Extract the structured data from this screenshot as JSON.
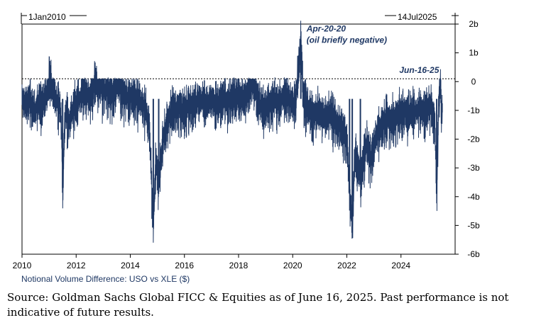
{
  "chart_data": {
    "type": "line",
    "title": "",
    "xlabel": "Notional Volume Difference: USO vs XLE ($)",
    "ylabel": "",
    "xlim": [
      2010,
      2026
    ],
    "ylim": [
      -6,
      2
    ],
    "x_ticks": [
      "2010",
      "2012",
      "2014",
      "2016",
      "2018",
      "2020",
      "2022",
      "2024"
    ],
    "y_ticks": [
      "2b",
      "1b",
      "0",
      "-1b",
      "-2b",
      "-3b",
      "-4b",
      "-5b",
      "-6b"
    ],
    "y_tick_values": [
      2,
      1,
      0,
      -1,
      -2,
      -3,
      -4,
      -5,
      -6
    ],
    "start_label": "1Jan2010",
    "end_label": "14Jul2025",
    "reference_line": {
      "y": 0.1,
      "style": "dotted"
    },
    "annotations": [
      {
        "label": "Apr-20-20",
        "x": 2020.3,
        "y": 1.45
      },
      {
        "label": "(oil briefly negative)",
        "x": 2020.3,
        "y": 1.45
      },
      {
        "label": "Jun-16-25",
        "x": 2025.46,
        "y": 0.05
      }
    ],
    "series": [
      {
        "color": "#1f3864",
        "points": [
          [
            2010.0,
            -0.55
          ],
          [
            2010.15,
            -0.8
          ],
          [
            2010.3,
            -0.5
          ],
          [
            2010.45,
            -1.1
          ],
          [
            2010.6,
            -0.6
          ],
          [
            2010.75,
            -0.9
          ],
          [
            2010.9,
            -0.4
          ],
          [
            2011.05,
            0.2
          ],
          [
            2011.15,
            -0.3
          ],
          [
            2011.3,
            -0.7
          ],
          [
            2011.45,
            -1.2
          ],
          [
            2011.5,
            -3.7
          ],
          [
            2011.6,
            -1.0
          ],
          [
            2011.75,
            -1.4
          ],
          [
            2011.9,
            -0.9
          ],
          [
            2012.1,
            -0.6
          ],
          [
            2012.3,
            -0.3
          ],
          [
            2012.5,
            -0.5
          ],
          [
            2012.7,
            0.1
          ],
          [
            2012.9,
            -0.2
          ],
          [
            2013.1,
            -0.3
          ],
          [
            2013.3,
            -0.4
          ],
          [
            2013.5,
            0.0
          ],
          [
            2013.7,
            -0.4
          ],
          [
            2013.9,
            -0.6
          ],
          [
            2014.1,
            -0.5
          ],
          [
            2014.3,
            -0.6
          ],
          [
            2014.5,
            -0.8
          ],
          [
            2014.7,
            -1.5
          ],
          [
            2014.85,
            -5.0
          ],
          [
            2014.95,
            -2.6
          ],
          [
            2015.05,
            -3.6
          ],
          [
            2015.2,
            -2.0
          ],
          [
            2015.4,
            -1.2
          ],
          [
            2015.6,
            -1.0
          ],
          [
            2015.8,
            -0.9
          ],
          [
            2016.0,
            -1.0
          ],
          [
            2016.2,
            -0.8
          ],
          [
            2016.4,
            -0.7
          ],
          [
            2016.6,
            -0.6
          ],
          [
            2016.8,
            -0.7
          ],
          [
            2017.0,
            -0.6
          ],
          [
            2017.2,
            -0.8
          ],
          [
            2017.4,
            -0.6
          ],
          [
            2017.6,
            -0.7
          ],
          [
            2017.8,
            -0.6
          ],
          [
            2018.0,
            -0.5
          ],
          [
            2018.2,
            -0.6
          ],
          [
            2018.5,
            0.0
          ],
          [
            2018.7,
            -0.6
          ],
          [
            2018.9,
            -1.0
          ],
          [
            2019.1,
            -0.8
          ],
          [
            2019.3,
            -0.6
          ],
          [
            2019.5,
            -0.7
          ],
          [
            2019.7,
            -0.5
          ],
          [
            2019.9,
            -0.6
          ],
          [
            2020.1,
            -0.8
          ],
          [
            2020.3,
            1.45
          ],
          [
            2020.4,
            -0.6
          ],
          [
            2020.6,
            -0.9
          ],
          [
            2020.8,
            -1.2
          ],
          [
            2021.0,
            -1.0
          ],
          [
            2021.2,
            -1.3
          ],
          [
            2021.4,
            -1.1
          ],
          [
            2021.6,
            -1.4
          ],
          [
            2021.8,
            -1.6
          ],
          [
            2022.0,
            -2.0
          ],
          [
            2022.1,
            -3.8
          ],
          [
            2022.2,
            -5.0
          ],
          [
            2022.3,
            -2.5
          ],
          [
            2022.5,
            -3.2
          ],
          [
            2022.7,
            -2.2
          ],
          [
            2022.9,
            -2.6
          ],
          [
            2023.1,
            -1.8
          ],
          [
            2023.3,
            -1.5
          ],
          [
            2023.5,
            -1.2
          ],
          [
            2023.7,
            -1.3
          ],
          [
            2023.9,
            -1.1
          ],
          [
            2024.1,
            -1.0
          ],
          [
            2024.3,
            -1.1
          ],
          [
            2024.5,
            -1.0
          ],
          [
            2024.7,
            -0.9
          ],
          [
            2024.9,
            -1.0
          ],
          [
            2025.1,
            -0.8
          ],
          [
            2025.25,
            -1.5
          ],
          [
            2025.32,
            -3.9
          ],
          [
            2025.4,
            -0.6
          ],
          [
            2025.46,
            0.05
          ],
          [
            2025.5,
            -1.2
          ],
          [
            2025.53,
            -0.9
          ]
        ]
      }
    ]
  },
  "source_note": "Source: Goldman Sachs Global FICC & Equities as of June 16, 2025. Past performance is not indicative of future results."
}
